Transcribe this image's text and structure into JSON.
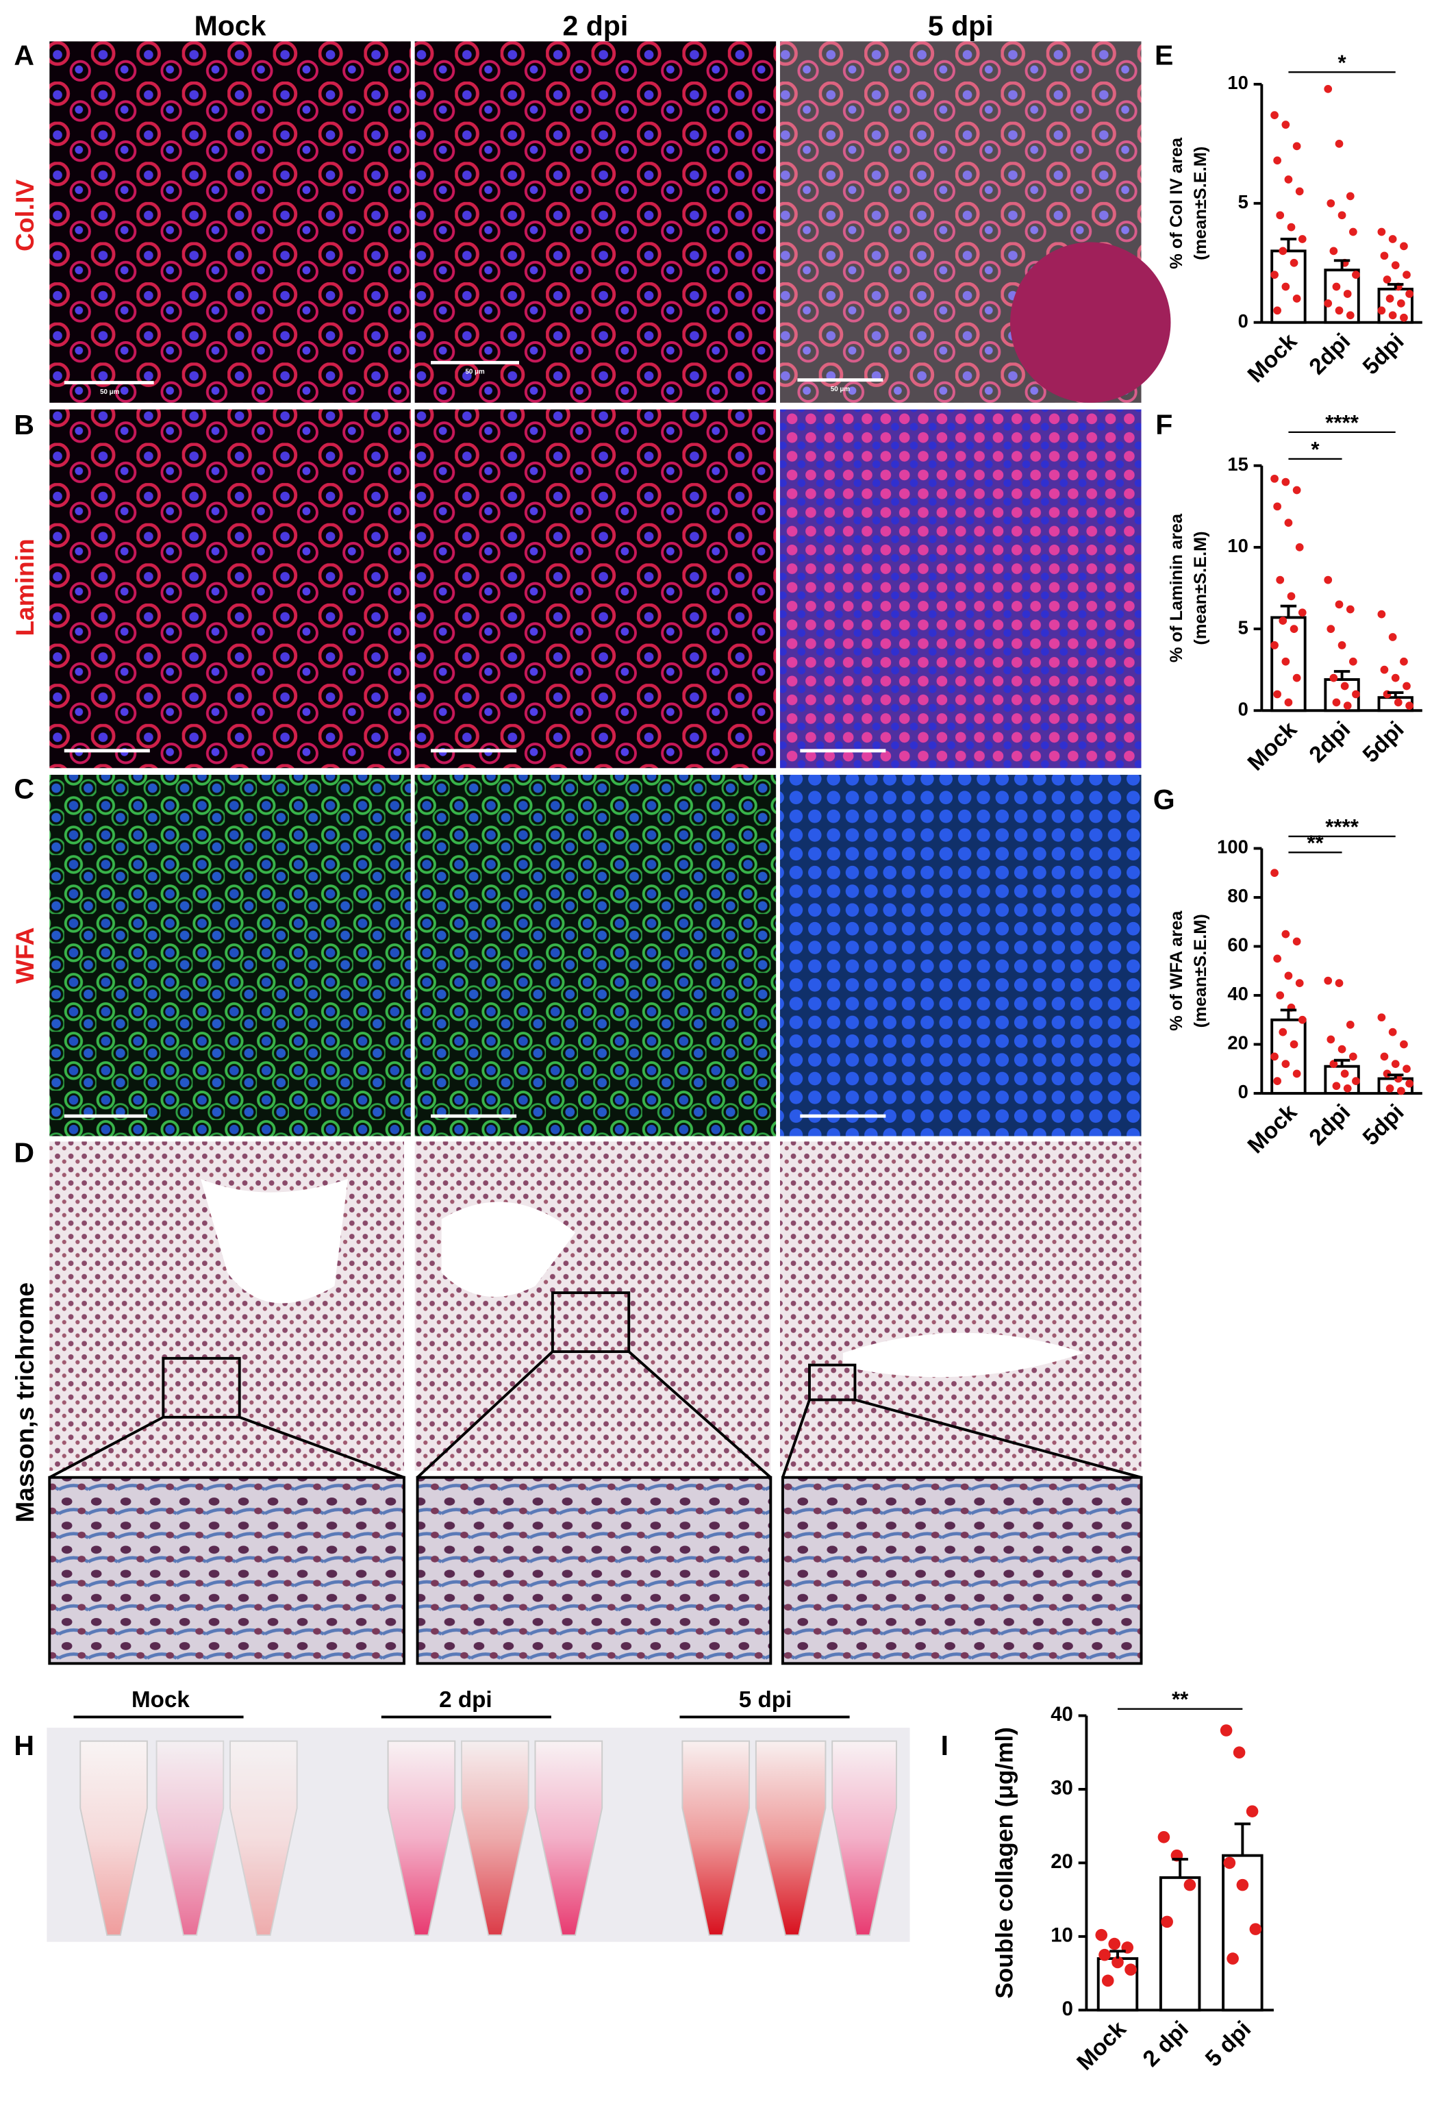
{
  "figure": {
    "panels": [
      "A",
      "B",
      "C",
      "D",
      "E",
      "F",
      "G",
      "H",
      "I"
    ],
    "columns": [
      "Mock",
      "2 dpi",
      "5 dpi"
    ],
    "rows": [
      "Col.IV",
      "Laminin",
      "WFA",
      "Masson,s trichrome"
    ],
    "scale_bar": "50 μm",
    "tube_groups": [
      "Mock",
      "2 dpi",
      "5 dpi"
    ]
  },
  "chart_data": [
    {
      "type": "bar",
      "ylabel": [
        "% of Col IV area",
        "(mean±S.E.M)"
      ],
      "categories": [
        "Mock",
        "2dpi",
        "5dpi"
      ],
      "values": [
        3,
        2.2,
        1.4
      ],
      "errors": [
        0.5,
        0.4,
        0.2
      ],
      "points": [
        [
          8.7,
          8.3,
          7.4,
          6.8,
          6,
          5.5,
          4.5,
          4,
          3.5,
          3,
          2.5,
          2,
          1.5,
          1,
          0.5
        ],
        [
          9.8,
          7.5,
          5.3,
          5,
          4.5,
          3.8,
          3,
          2.5,
          2,
          1.5,
          1.2,
          0.8,
          0.5,
          0.3
        ],
        [
          3.8,
          3.5,
          3.2,
          2.8,
          2.4,
          2,
          1.8,
          1.5,
          1.2,
          1,
          0.8,
          0.5,
          0.3,
          0.2
        ]
      ],
      "color": "#e41f1f",
      "ylim": [
        0,
        10
      ],
      "yticks": [
        0,
        5,
        10
      ],
      "annotations": [
        {
          "text": "*",
          "from": 0,
          "to": 2
        }
      ]
    },
    {
      "type": "bar",
      "ylabel": [
        "% of Laminin area",
        "(mean±S.E.M)"
      ],
      "categories": [
        "Mock",
        "2dpi",
        "5dpi"
      ],
      "values": [
        5.7,
        1.9,
        0.8
      ],
      "errors": [
        0.7,
        0.5,
        0.3
      ],
      "points": [
        [
          14.2,
          14,
          13.5,
          12.5,
          11.5,
          10,
          8,
          7,
          6,
          5.5,
          5,
          4,
          3,
          2,
          1,
          0.5
        ],
        [
          8,
          6.5,
          6.2,
          5,
          4,
          3,
          2,
          1.5,
          1,
          0.5,
          0.3
        ],
        [
          5.9,
          4.5,
          3,
          2.5,
          2,
          1.5,
          1,
          0.5,
          0.3
        ]
      ],
      "color": "#e41f1f",
      "ylim": [
        0,
        15
      ],
      "yticks": [
        0,
        5,
        10,
        15
      ],
      "annotations": [
        {
          "text": "*",
          "from": 0,
          "to": 1
        },
        {
          "text": "****",
          "from": 0,
          "to": 2
        }
      ]
    },
    {
      "type": "bar",
      "ylabel": [
        "% of WFA area",
        "(mean±S.E.M)"
      ],
      "categories": [
        "Mock",
        "2dpi",
        "5dpi"
      ],
      "values": [
        30,
        11,
        6
      ],
      "errors": [
        4,
        2.5,
        1.5
      ],
      "points": [
        [
          90,
          65,
          62,
          55,
          48,
          45,
          40,
          35,
          30,
          25,
          20,
          15,
          12,
          8,
          5
        ],
        [
          46,
          45,
          28,
          22,
          18,
          15,
          12,
          8,
          5,
          3,
          2
        ],
        [
          31,
          25,
          20,
          15,
          12,
          10,
          8,
          6,
          4,
          2,
          1
        ]
      ],
      "color": "#e41f1f",
      "ylim": [
        0,
        100
      ],
      "yticks": [
        0,
        20,
        40,
        60,
        80,
        100
      ],
      "annotations": [
        {
          "text": "**",
          "from": 0,
          "to": 1
        },
        {
          "text": "****",
          "from": 0,
          "to": 2
        }
      ]
    },
    {
      "type": "bar",
      "ylabel": [
        "Souble collagen (μg/ml)"
      ],
      "categories": [
        "Mock",
        "2 dpi",
        "5 dpi"
      ],
      "values": [
        7,
        18,
        21
      ],
      "errors": [
        1,
        2.5,
        4.3
      ],
      "points": [
        [
          10.2,
          9,
          8.5,
          7.5,
          6.5,
          5.5,
          4
        ],
        [
          23.5,
          21,
          17,
          12
        ],
        [
          38,
          35,
          27,
          20,
          17,
          11,
          7
        ]
      ],
      "color": "#e41f1f",
      "ylim": [
        0,
        40
      ],
      "yticks": [
        0,
        10,
        20,
        30,
        40
      ],
      "annotations": [
        {
          "text": "**",
          "from": 0,
          "to": 2
        }
      ]
    }
  ]
}
